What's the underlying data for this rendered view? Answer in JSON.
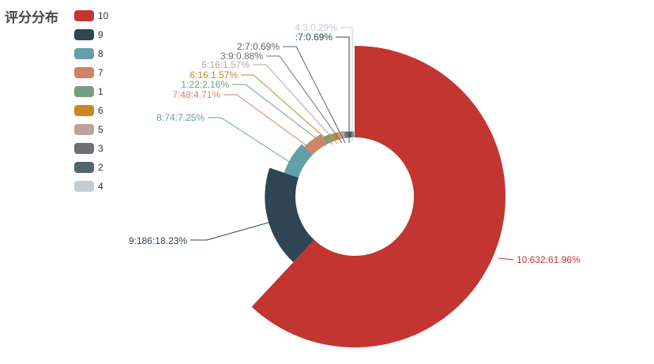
{
  "title": "评分分布",
  "chart_data": {
    "type": "pie",
    "subtype": "rose-donut",
    "title": "评分分布",
    "legend_position": "top-left",
    "series": [
      {
        "name": "10",
        "label": "10:632:61.96%",
        "count": 632,
        "percent": 61.96,
        "color": "#c23531"
      },
      {
        "name": "9",
        "label": "9:186:18.23%",
        "count": 186,
        "percent": 18.23,
        "color": "#2f4554"
      },
      {
        "name": "8",
        "label": "8:74:7.25%",
        "count": 74,
        "percent": 7.25,
        "color": "#61a0a8"
      },
      {
        "name": "7",
        "label": "7:48:4.71%",
        "count": 48,
        "percent": 4.71,
        "color": "#d48265"
      },
      {
        "name": "1",
        "label": "1:22:2.16%",
        "count": 22,
        "percent": 2.16,
        "color": "#749f83"
      },
      {
        "name": "6",
        "label": "6:16:1.57%",
        "count": 16,
        "percent": 1.57,
        "color": "#ca8622"
      },
      {
        "name": "5",
        "label": "5:16:1.57%",
        "count": 16,
        "percent": 1.57,
        "color": "#bda29a"
      },
      {
        "name": "3",
        "label": "3:9:0.88%",
        "count": 9,
        "percent": 0.88,
        "color": "#6e7074"
      },
      {
        "name": "2",
        "label": "2:7:0.69%",
        "count": 7,
        "percent": 0.69,
        "color": "#546570"
      },
      {
        "name": "",
        "label": ":7:0.69%",
        "count": 7,
        "percent": 0.69,
        "color": "#2f4554"
      },
      {
        "name": "4",
        "label": "4:3:0.29%",
        "count": 3,
        "percent": 0.29,
        "color": "#c4ccd3"
      }
    ]
  }
}
